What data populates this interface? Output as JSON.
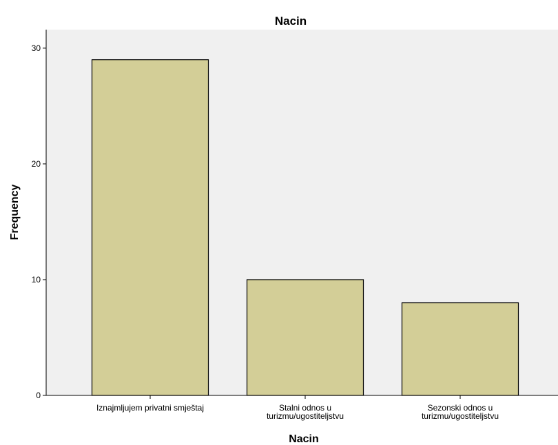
{
  "chart_data": {
    "type": "bar",
    "title": "Nacin",
    "xlabel": "Nacin",
    "ylabel": "Frequency",
    "categories": [
      [
        "Iznajmljujem privatni smještaj"
      ],
      [
        "Stalni odnos u",
        "turizmu/ugostiteljstvu"
      ],
      [
        "Sezonski odnos u",
        "turizmu/ugostiteljstvu"
      ]
    ],
    "values": [
      29,
      10,
      8
    ],
    "ylim": [
      0,
      31.6
    ],
    "yticks": [
      "0",
      "10",
      "20",
      "30"
    ],
    "grid": false,
    "legend": "none",
    "colors": {
      "bar_fill": "#d3ce97",
      "bar_stroke": "#000000",
      "plot_background": "#f0f0f0",
      "axis": "#000000"
    }
  }
}
